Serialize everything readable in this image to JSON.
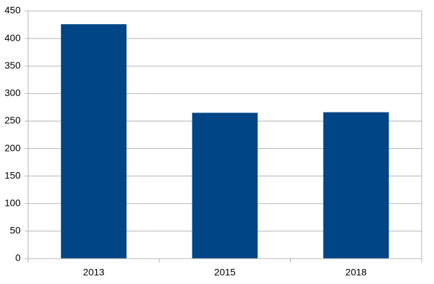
{
  "chart_data": {
    "type": "bar",
    "categories": [
      "2013",
      "2015",
      "2018"
    ],
    "values": [
      426,
      265,
      266
    ],
    "color": "#004586",
    "ylim": [
      0,
      450
    ],
    "yticks": [
      0,
      50,
      100,
      150,
      200,
      250,
      300,
      350,
      400,
      450
    ],
    "grid": true
  }
}
